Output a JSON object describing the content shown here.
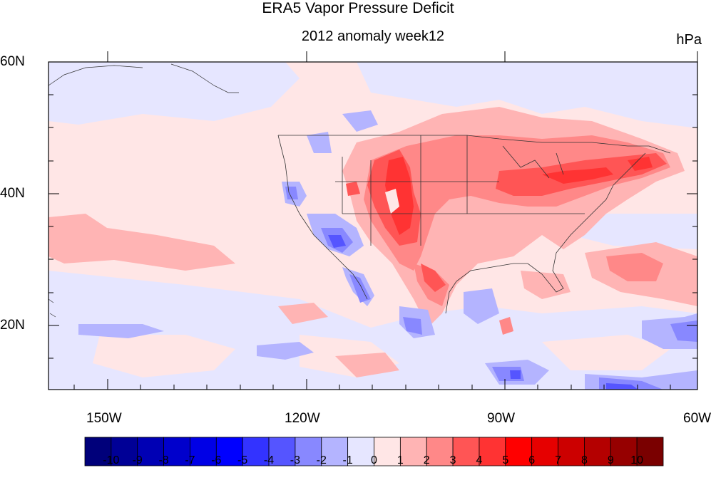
{
  "title": "ERA5 Vapor Pressure Deficit",
  "subtitle": "2012 anomaly week12",
  "units": "hPa",
  "lat_labels": [
    "60N",
    "40N",
    "20N"
  ],
  "lon_labels": [
    "150W",
    "120W",
    "90W",
    "60W"
  ],
  "colorbar": {
    "labels": [
      "-10",
      "-9",
      "-8",
      "-7",
      "-6",
      "-5",
      "-4",
      "-3",
      "-2",
      "-1",
      "0",
      "1",
      "2",
      "3",
      "4",
      "5",
      "6",
      "7",
      "8",
      "9",
      "10"
    ],
    "colors": [
      "#00007a",
      "#000096",
      "#0000b4",
      "#0000cc",
      "#0000e6",
      "#0000ff",
      "#3333ff",
      "#5555ff",
      "#8888ff",
      "#b4b4ff",
      "#e6e6ff",
      "#ffe6e6",
      "#ffb4b4",
      "#ff8888",
      "#ff5555",
      "#ff3333",
      "#ff0000",
      "#e60000",
      "#cc0000",
      "#b40000",
      "#960000",
      "#7a0000"
    ]
  }
}
